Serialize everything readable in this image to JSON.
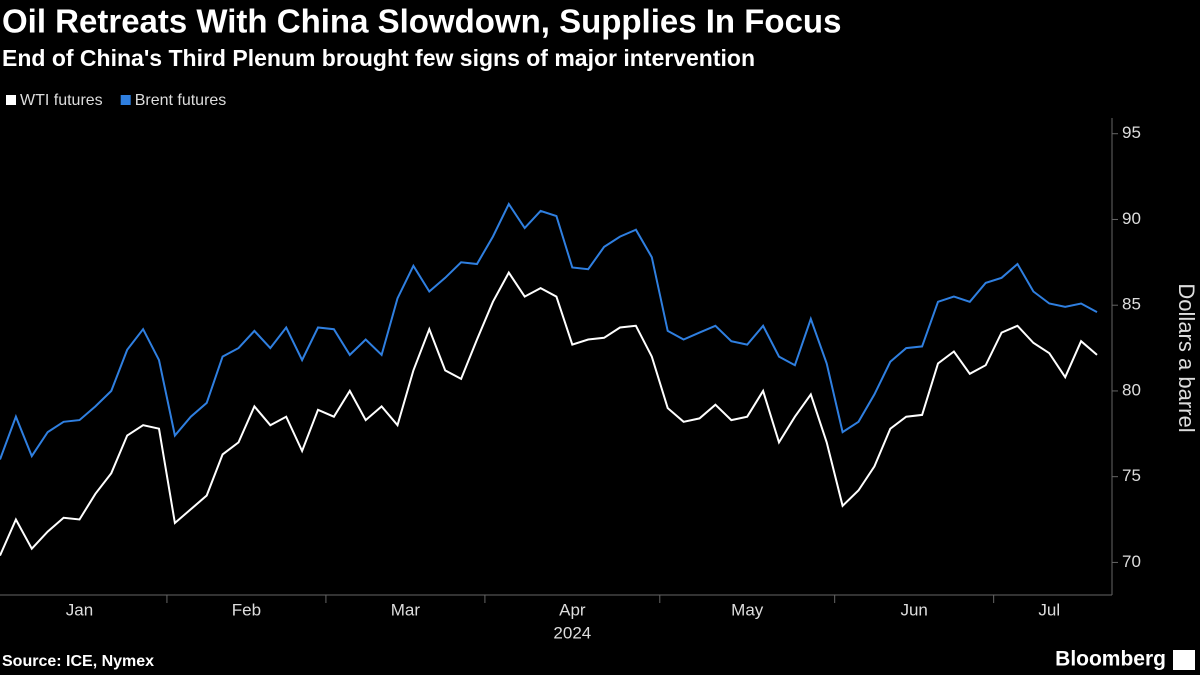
{
  "chart_data": {
    "type": "line",
    "title": "Oil Retreats With China Slowdown, Supplies In Focus",
    "subtitle": "End of China's Third Plenum brought few signs of major intervention",
    "ylabel": "Dollars a barrel",
    "xlabel": "2024",
    "source": "Source: ICE, Nymex",
    "brand": "Bloomberg",
    "categories": [
      "Jan",
      "Jan",
      "Jan",
      "Jan",
      "Jan",
      "Jan",
      "Jan",
      "Jan",
      "Jan",
      "Jan",
      "Jan",
      "Feb",
      "Feb",
      "Feb",
      "Feb",
      "Feb",
      "Feb",
      "Feb",
      "Feb",
      "Feb",
      "Feb",
      "Mar",
      "Mar",
      "Mar",
      "Mar",
      "Mar",
      "Mar",
      "Mar",
      "Mar",
      "Mar",
      "Mar",
      "Apr",
      "Apr",
      "Apr",
      "Apr",
      "Apr",
      "Apr",
      "Apr",
      "Apr",
      "Apr",
      "Apr",
      "Apr",
      "May",
      "May",
      "May",
      "May",
      "May",
      "May",
      "May",
      "May",
      "May",
      "May",
      "May",
      "Jun",
      "Jun",
      "Jun",
      "Jun",
      "Jun",
      "Jun",
      "Jun",
      "Jun",
      "Jun",
      "Jun",
      "Jul",
      "Jul",
      "Jul",
      "Jul",
      "Jul",
      "Jul",
      "Jul"
    ],
    "series": [
      {
        "name": "WTI futures",
        "color": "#ffffff",
        "values": [
          70.4,
          72.5,
          70.8,
          71.8,
          72.6,
          72.5,
          74.0,
          75.2,
          77.4,
          78.0,
          77.8,
          72.3,
          73.1,
          73.9,
          76.3,
          77.0,
          79.1,
          78.0,
          78.5,
          76.5,
          78.9,
          78.5,
          80.0,
          78.3,
          79.1,
          78.0,
          81.2,
          83.6,
          81.2,
          80.7,
          83.0,
          85.2,
          86.9,
          85.5,
          86.0,
          85.5,
          82.7,
          83.0,
          83.1,
          83.7,
          83.8,
          82.0,
          79.0,
          78.2,
          78.4,
          79.2,
          78.3,
          78.5,
          80.0,
          77.0,
          78.5,
          79.8,
          77.0,
          73.3,
          74.2,
          75.6,
          77.8,
          78.5,
          78.6,
          81.6,
          82.3,
          81.0,
          81.5,
          83.4,
          83.8,
          82.8,
          82.2,
          80.8,
          82.9,
          82.1
        ]
      },
      {
        "name": "Brent futures",
        "color": "#2f7fe0",
        "values": [
          76.0,
          78.5,
          76.2,
          77.6,
          78.2,
          78.3,
          79.1,
          80.0,
          82.4,
          83.6,
          81.8,
          77.4,
          78.5,
          79.3,
          82.0,
          82.5,
          83.5,
          82.5,
          83.7,
          81.8,
          83.7,
          83.6,
          82.1,
          83.0,
          82.1,
          85.4,
          87.3,
          85.8,
          86.6,
          87.5,
          87.4,
          89.0,
          90.9,
          89.5,
          90.5,
          90.2,
          87.2,
          87.1,
          88.4,
          89.0,
          89.4,
          87.8,
          83.5,
          83.0,
          83.4,
          83.8,
          82.9,
          82.7,
          83.8,
          82.0,
          81.5,
          84.2,
          81.6,
          77.6,
          78.2,
          79.8,
          81.7,
          82.5,
          82.6,
          85.2,
          85.5,
          85.2,
          86.3,
          86.6,
          87.4,
          85.8,
          85.1,
          84.9,
          85.1,
          84.6
        ]
      }
    ],
    "ylim": [
      68.1,
      95.8
    ],
    "yticks": [
      70,
      75,
      80,
      85,
      90,
      95
    ],
    "legend": "top-left"
  }
}
